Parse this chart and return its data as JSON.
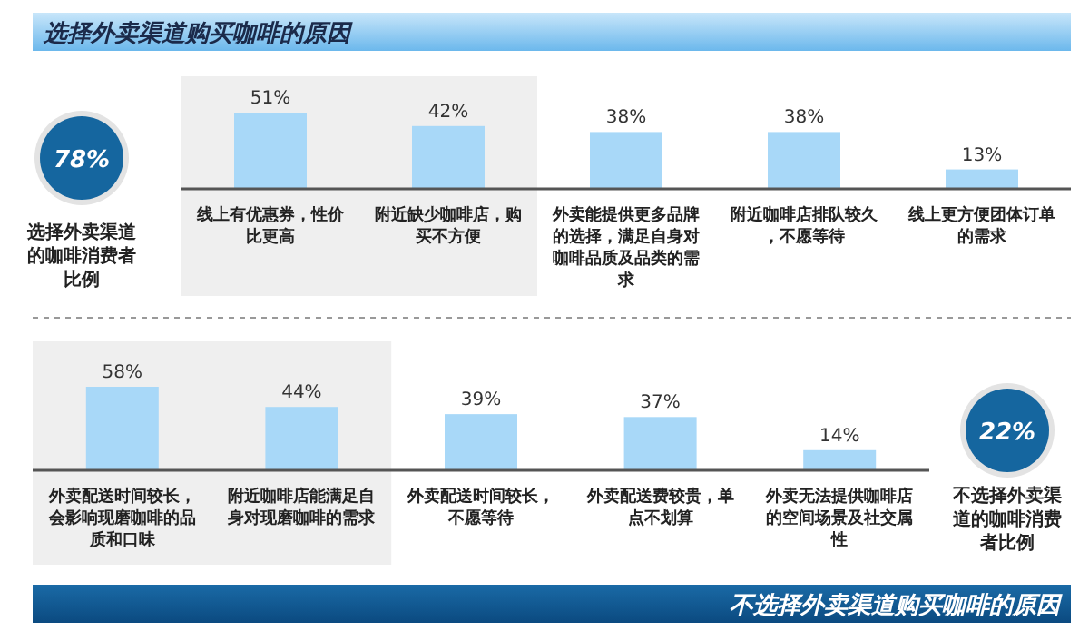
{
  "chart_data": [
    {
      "type": "bar",
      "title": "选择外卖渠道购买咖啡的原因",
      "categories": [
        "线上有优惠券，性价比更高",
        "附近缺少咖啡店，购买不方便",
        "外卖能提供更多品牌的选择，满足自身对咖啡品质及品类的需求",
        "附近咖啡店排队较久，不愿等待",
        "线上更方便团体订单的需求"
      ],
      "values": [
        51,
        42,
        38,
        38,
        13
      ],
      "color": "#a8d8f8",
      "value_labels": [
        "51%",
        "42%",
        "38%",
        "38%",
        "13%"
      ],
      "bands": [
        {
          "axis": "x",
          "from": "线上有优惠券，性价比更高",
          "to": "附近缺少咖啡店，购买不方便",
          "color": "#efefef"
        }
      ],
      "annotations": [
        "78%",
        "选择外卖渠道的咖啡消费者比例"
      ]
    },
    {
      "type": "bar",
      "title": "不选择外卖渠道购买咖啡的原因",
      "categories": [
        "外卖配送时间较长，会影响现磨咖啡的品质和口味",
        "附近咖啡店能满足自身对现磨咖啡的需求",
        "外卖配送时间较长，不愿等待",
        "外卖配送费较贵，单点不划算",
        "外卖无法提供咖啡店的空间场景及社交属性"
      ],
      "values": [
        58,
        44,
        39,
        37,
        14
      ],
      "color": "#a8d8f8",
      "value_labels": [
        "58%",
        "44%",
        "39%",
        "37%",
        "14%"
      ],
      "bands": [
        {
          "axis": "x",
          "from": "外卖配送时间较长，会影响现磨咖啡的品质和口味",
          "to": "附近咖啡店能满足自身对现磨咖啡的需求",
          "color": "#efefef"
        }
      ],
      "annotations": [
        "22%",
        "不选择外卖渠道的咖啡消费者比例"
      ]
    }
  ]
}
